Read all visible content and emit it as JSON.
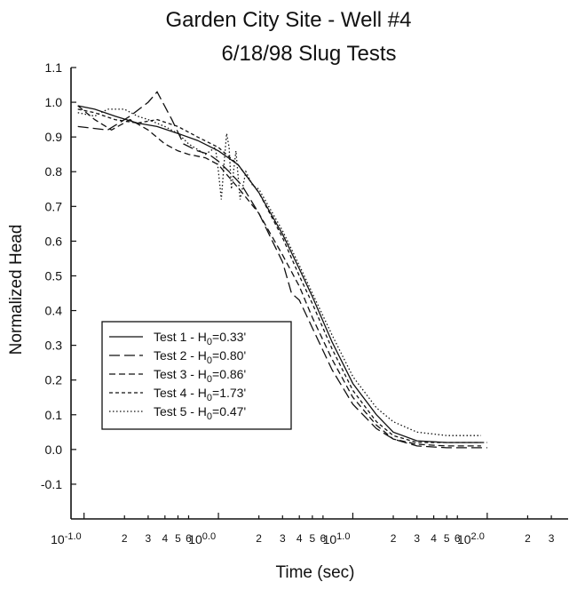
{
  "chart_data": {
    "type": "line",
    "title": "Garden City Site - Well #4",
    "subtitle": "6/18/98 Slug Tests",
    "xlabel": "Time (sec)",
    "ylabel": "Normalized Head",
    "xscale": "log",
    "xlim": [
      0.08,
      400
    ],
    "ylim": [
      -0.2,
      1.1
    ],
    "grid": false,
    "legend_position": "lower-left",
    "x_major_ticks": [
      {
        "value": 0.1,
        "base": "10",
        "exp": "-1.0"
      },
      {
        "value": 1,
        "base": "10",
        "exp": "0.0"
      },
      {
        "value": 10,
        "base": "10",
        "exp": "1.0"
      },
      {
        "value": 100,
        "base": "10",
        "exp": "2.0"
      }
    ],
    "x_minor_ticks": [
      {
        "value": 0.2,
        "label": "2"
      },
      {
        "value": 0.3,
        "label": "3"
      },
      {
        "value": 0.4,
        "label": "4"
      },
      {
        "value": 0.5,
        "label": "5"
      },
      {
        "value": 0.6,
        "label": "6"
      },
      {
        "value": 2,
        "label": "2"
      },
      {
        "value": 3,
        "label": "3"
      },
      {
        "value": 4,
        "label": "4"
      },
      {
        "value": 5,
        "label": "5"
      },
      {
        "value": 6,
        "label": "6"
      },
      {
        "value": 20,
        "label": "2"
      },
      {
        "value": 30,
        "label": "3"
      },
      {
        "value": 40,
        "label": "4"
      },
      {
        "value": 50,
        "label": "5"
      },
      {
        "value": 60,
        "label": "6"
      },
      {
        "value": 200,
        "label": "2"
      },
      {
        "value": 300,
        "label": "3"
      }
    ],
    "y_ticks": [
      {
        "value": 1.1,
        "label": "1.1"
      },
      {
        "value": 1.0,
        "label": "1.0"
      },
      {
        "value": 0.9,
        "label": "0.9"
      },
      {
        "value": 0.8,
        "label": "0.8"
      },
      {
        "value": 0.7,
        "label": "0.7"
      },
      {
        "value": 0.6,
        "label": "0.6"
      },
      {
        "value": 0.5,
        "label": "0.5"
      },
      {
        "value": 0.4,
        "label": "0.4"
      },
      {
        "value": 0.3,
        "label": "0.3"
      },
      {
        "value": 0.2,
        "label": "0.2"
      },
      {
        "value": 0.1,
        "label": "0.1"
      },
      {
        "value": 0.0,
        "label": "0.0"
      },
      {
        "value": -0.1,
        "label": "-0.1"
      }
    ],
    "series": [
      {
        "name": "Test 1 - H0=0.33'",
        "legend_prefix": "Test 1 - H",
        "legend_sub": "0",
        "legend_suffix": "=0.33'",
        "dash": "",
        "x": [
          0.09,
          0.12,
          0.17,
          0.25,
          0.35,
          0.5,
          0.7,
          1.0,
          1.4,
          2.0,
          3.0,
          4.0,
          5.0,
          7.0,
          10,
          15,
          20,
          30,
          50,
          70,
          90
        ],
        "y": [
          0.99,
          0.98,
          0.96,
          0.94,
          0.93,
          0.91,
          0.89,
          0.86,
          0.82,
          0.74,
          0.62,
          0.52,
          0.44,
          0.31,
          0.19,
          0.1,
          0.05,
          0.025,
          0.02,
          0.02,
          0.02
        ]
      },
      {
        "name": "Test 2 - H0=0.80'",
        "legend_prefix": "Test 2 - H",
        "legend_sub": "0",
        "legend_suffix": "=0.80'",
        "dash": "12,5",
        "x": [
          0.09,
          0.15,
          0.22,
          0.3,
          0.35,
          0.45,
          0.55,
          0.7,
          0.85,
          1.0,
          1.2,
          1.5,
          2.0,
          3.0,
          3.5,
          4.0,
          5.0,
          7.0,
          10,
          15,
          20,
          30,
          50,
          70,
          100
        ],
        "y": [
          0.93,
          0.92,
          0.96,
          1.0,
          1.03,
          0.95,
          0.88,
          0.86,
          0.85,
          0.83,
          0.8,
          0.76,
          0.68,
          0.54,
          0.45,
          0.43,
          0.35,
          0.23,
          0.13,
          0.06,
          0.03,
          0.01,
          0.005,
          0.005,
          0.005
        ]
      },
      {
        "name": "Test 3 - H0=0.86'",
        "legend_prefix": "Test 3 - H",
        "legend_sub": "0",
        "legend_suffix": "=0.86'",
        "dash": "7,4",
        "x": [
          0.09,
          0.12,
          0.16,
          0.22,
          0.3,
          0.4,
          0.5,
          0.6,
          0.8,
          1.0,
          1.5,
          2.0,
          3.0,
          4.0,
          5.0,
          7.0,
          10,
          15,
          20,
          30,
          50,
          70,
          90
        ],
        "y": [
          0.99,
          0.95,
          0.92,
          0.95,
          0.92,
          0.88,
          0.86,
          0.85,
          0.84,
          0.82,
          0.74,
          0.68,
          0.56,
          0.47,
          0.38,
          0.26,
          0.15,
          0.07,
          0.03,
          0.015,
          0.01,
          0.01,
          0.01
        ]
      },
      {
        "name": "Test 4 - H0=1.73'",
        "legend_prefix": "Test 4 - H",
        "legend_sub": "0",
        "legend_suffix": "=1.73'",
        "dash": "4,3",
        "x": [
          0.09,
          0.12,
          0.17,
          0.25,
          0.35,
          0.5,
          0.7,
          1.0,
          1.4,
          2.0,
          3.0,
          4.0,
          5.0,
          7.0,
          10,
          15,
          20,
          30,
          50,
          70,
          100
        ],
        "y": [
          0.98,
          0.97,
          0.95,
          0.94,
          0.95,
          0.93,
          0.9,
          0.87,
          0.82,
          0.74,
          0.61,
          0.5,
          0.42,
          0.29,
          0.17,
          0.08,
          0.04,
          0.02,
          0.02,
          0.02,
          0.02
        ]
      },
      {
        "name": "Test 5 - H0=0.47'",
        "legend_prefix": "Test 5 - H",
        "legend_sub": "0",
        "legend_suffix": "=0.47'",
        "dash": "1.5,2.5",
        "x": [
          0.09,
          0.12,
          0.15,
          0.2,
          0.25,
          0.3,
          0.4,
          0.5,
          0.6,
          0.8,
          0.95,
          1.0,
          1.05,
          1.1,
          1.15,
          1.2,
          1.25,
          1.35,
          1.45,
          1.6,
          1.8,
          2.0,
          3.0,
          4.0,
          5.0,
          7.0,
          10,
          15,
          20,
          30,
          50,
          70,
          90
        ],
        "y": [
          0.97,
          0.96,
          0.98,
          0.98,
          0.96,
          0.95,
          0.93,
          0.91,
          0.88,
          0.85,
          0.87,
          0.8,
          0.72,
          0.82,
          0.91,
          0.87,
          0.75,
          0.86,
          0.72,
          0.8,
          0.76,
          0.75,
          0.63,
          0.53,
          0.45,
          0.33,
          0.21,
          0.12,
          0.08,
          0.05,
          0.04,
          0.04,
          0.04
        ]
      }
    ]
  }
}
